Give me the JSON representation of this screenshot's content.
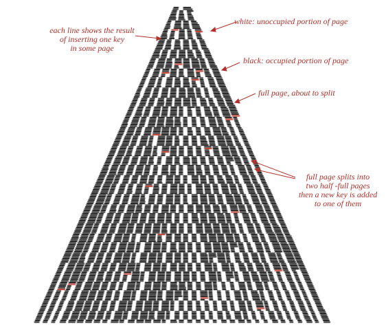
{
  "annotations": {
    "each_line": [
      "each line shows the result",
      "of inserting one key",
      "in some page"
    ],
    "white": "white: unoccupied portion of page",
    "black": "black: occupied portion of page",
    "full": "full page, about to split",
    "splits": [
      "full page splits into",
      "two half -full pages",
      "then a new key is added",
      "to one of them"
    ]
  },
  "colors": {
    "occupied": "#1a1a1a",
    "unoccupied": "#ffffff",
    "full_page": "#c0392b",
    "annotation": "#b5302a"
  }
}
